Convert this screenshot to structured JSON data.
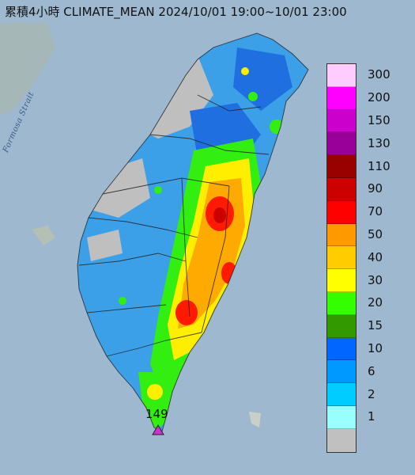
{
  "header": {
    "title": "累積4小時 CLIMATE_MEAN 2024/10/01 19:00~10/01 23:00"
  },
  "map": {
    "strait_label": "Formosa Strait",
    "ocean_color": "#9db8cf",
    "land_color": "#a8b3a8"
  },
  "max_station": {
    "value": "149",
    "marker_color": "#cc33cc"
  },
  "legend": {
    "levels": [
      {
        "label": "300",
        "color": "#ffccff"
      },
      {
        "label": "200",
        "color": "#ff00ff"
      },
      {
        "label": "150",
        "color": "#cc00cc"
      },
      {
        "label": "130",
        "color": "#990099"
      },
      {
        "label": "110",
        "color": "#990000"
      },
      {
        "label": "90",
        "color": "#cc0000"
      },
      {
        "label": "70",
        "color": "#ff0000"
      },
      {
        "label": "50",
        "color": "#ff9900"
      },
      {
        "label": "40",
        "color": "#ffcc00"
      },
      {
        "label": "30",
        "color": "#ffff00"
      },
      {
        "label": "20",
        "color": "#33ff00"
      },
      {
        "label": "15",
        "color": "#339900"
      },
      {
        "label": "10",
        "color": "#0066ff"
      },
      {
        "label": "6",
        "color": "#0099ff"
      },
      {
        "label": "2",
        "color": "#00ccff"
      },
      {
        "label": "1",
        "color": "#99ffff"
      },
      {
        "label": "",
        "color": "#c0c0c0"
      }
    ]
  }
}
